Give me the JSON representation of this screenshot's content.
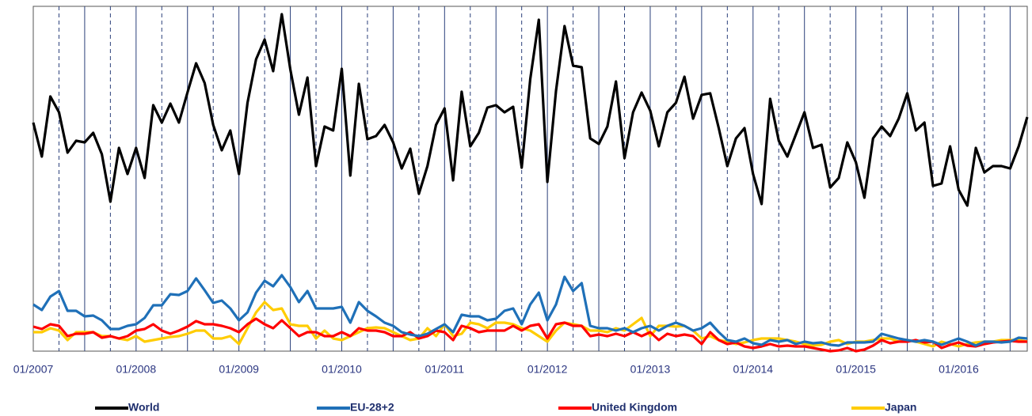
{
  "chart_data": {
    "type": "line",
    "categories": [
      "01/2007",
      null,
      null,
      null,
      null,
      null,
      null,
      null,
      null,
      null,
      null,
      null,
      "01/2008",
      null,
      null,
      null,
      null,
      null,
      null,
      null,
      null,
      null,
      null,
      null,
      "01/2009",
      null,
      null,
      null,
      null,
      null,
      null,
      null,
      null,
      null,
      null,
      null,
      "01/2010",
      null,
      null,
      null,
      null,
      null,
      null,
      null,
      null,
      null,
      null,
      null,
      "01/2011",
      null,
      null,
      null,
      null,
      null,
      null,
      null,
      null,
      null,
      null,
      null,
      "01/2012",
      null,
      null,
      null,
      null,
      null,
      null,
      null,
      null,
      null,
      null,
      null,
      "01/2013",
      null,
      null,
      null,
      null,
      null,
      null,
      null,
      null,
      null,
      null,
      null,
      "01/2014",
      null,
      null,
      null,
      null,
      null,
      null,
      null,
      null,
      null,
      null,
      null,
      "01/2015",
      null,
      null,
      null,
      null,
      null,
      null,
      null,
      null,
      null,
      null,
      null,
      "01/2016",
      null,
      null,
      null,
      null,
      null,
      null,
      null,
      null
    ],
    "ylim": [
      0,
      436
    ],
    "series": [
      {
        "name": "World",
        "color": "#000000",
        "values": [
          289,
          246,
          322,
          302,
          251,
          266,
          264,
          276,
          249,
          189,
          257,
          224,
          257,
          219,
          311,
          289,
          313,
          289,
          327,
          364,
          339,
          286,
          254,
          279,
          224,
          314,
          369,
          394,
          354,
          426,
          356,
          299,
          346,
          234,
          284,
          279,
          357,
          222,
          338,
          268,
          272,
          286,
          264,
          231,
          256,
          199,
          234,
          286,
          307,
          216,
          328,
          259,
          276,
          308,
          311,
          302,
          309,
          232,
          344,
          419,
          214,
          329,
          411,
          361,
          359,
          269,
          262,
          284,
          341,
          244,
          302,
          327,
          304,
          259,
          302,
          314,
          347,
          294,
          324,
          326,
          282,
          234,
          269,
          282,
          224,
          186,
          319,
          266,
          246,
          274,
          302,
          257,
          261,
          207,
          219,
          264,
          239,
          194,
          269,
          284,
          272,
          294,
          326,
          279,
          289,
          209,
          212,
          259,
          204,
          184,
          257,
          226,
          234,
          234,
          231,
          259,
          296
        ]
      },
      {
        "name": "EU-28+2",
        "color": "#1f70b8",
        "values": [
          59,
          52,
          69,
          76,
          51,
          51,
          44,
          45,
          39,
          28,
          28,
          32,
          34,
          42,
          58,
          58,
          72,
          71,
          76,
          92,
          77,
          61,
          64,
          54,
          39,
          49,
          74,
          89,
          82,
          96,
          81,
          62,
          76,
          54,
          54,
          54,
          56,
          36,
          62,
          51,
          44,
          36,
          32,
          24,
          21,
          19,
          22,
          28,
          34,
          24,
          46,
          44,
          44,
          39,
          41,
          51,
          54,
          34,
          59,
          74,
          39,
          59,
          94,
          76,
          86,
          32,
          29,
          29,
          26,
          29,
          24,
          29,
          32,
          26,
          32,
          36,
          32,
          26,
          29,
          36,
          24,
          14,
          12,
          16,
          10,
          8,
          14,
          12,
          14,
          9,
          12,
          10,
          11,
          8,
          7,
          11,
          11,
          11,
          12,
          22,
          19,
          16,
          14,
          12,
          14,
          12,
          8,
          12,
          16,
          12,
          7,
          12,
          12,
          11,
          12,
          17,
          16
        ]
      },
      {
        "name": "United Kingdom",
        "color": "#ff0000",
        "values": [
          31,
          28,
          34,
          32,
          19,
          22,
          22,
          24,
          17,
          19,
          16,
          19,
          26,
          28,
          34,
          26,
          22,
          26,
          31,
          38,
          34,
          34,
          32,
          29,
          24,
          34,
          41,
          34,
          29,
          39,
          29,
          19,
          24,
          24,
          19,
          19,
          24,
          19,
          29,
          26,
          26,
          24,
          19,
          19,
          24,
          16,
          19,
          26,
          24,
          14,
          32,
          29,
          24,
          26,
          26,
          26,
          32,
          26,
          32,
          34,
          16,
          34,
          36,
          32,
          32,
          19,
          21,
          19,
          22,
          19,
          24,
          19,
          24,
          14,
          22,
          19,
          21,
          19,
          9,
          24,
          14,
          9,
          11,
          6,
          4,
          6,
          9,
          6,
          7,
          6,
          6,
          4,
          2,
          0,
          1,
          4,
          0,
          2,
          7,
          14,
          10,
          12,
          12,
          14,
          11,
          12,
          4,
          8,
          11,
          7,
          6,
          9,
          11,
          12,
          13,
          12,
          12
        ]
      },
      {
        "name": "Japan",
        "color": "#ffcc00",
        "values": [
          24,
          24,
          29,
          26,
          14,
          24,
          24,
          24,
          19,
          19,
          16,
          14,
          19,
          12,
          14,
          16,
          18,
          19,
          22,
          26,
          26,
          16,
          16,
          19,
          9,
          29,
          49,
          62,
          52,
          54,
          34,
          32,
          32,
          16,
          26,
          16,
          14,
          19,
          24,
          29,
          30,
          29,
          24,
          19,
          14,
          16,
          29,
          19,
          34,
          19,
          22,
          36,
          34,
          29,
          36,
          36,
          34,
          29,
          26,
          19,
          12,
          26,
          36,
          34,
          32,
          26,
          26,
          24,
          29,
          26,
          34,
          42,
          19,
          32,
          32,
          31,
          32,
          26,
          16,
          19,
          14,
          12,
          9,
          11,
          14,
          16,
          16,
          16,
          14,
          12,
          9,
          7,
          8,
          12,
          14,
          9,
          12,
          12,
          14,
          16,
          16,
          12,
          14,
          12,
          9,
          6,
          12,
          9,
          6,
          9,
          11,
          12,
          12,
          14,
          14,
          14,
          12
        ]
      }
    ]
  }
}
